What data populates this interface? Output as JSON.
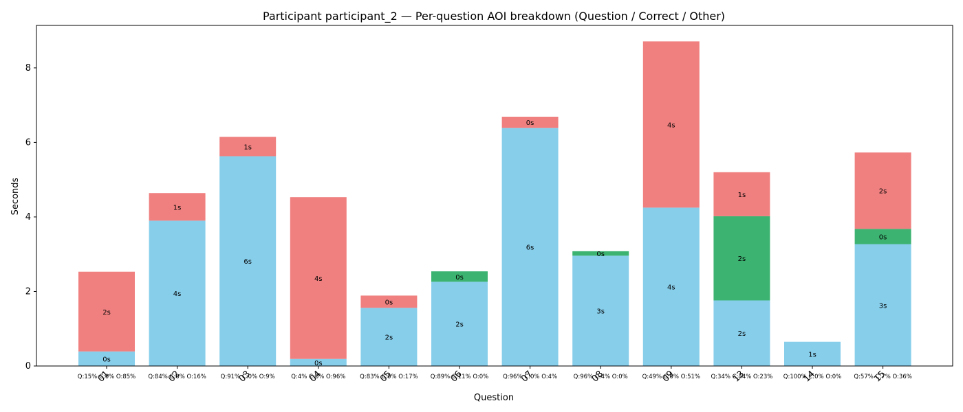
{
  "chart_data": {
    "type": "bar",
    "stacked": true,
    "title": "Participant participant_2 — Per-question AOI breakdown (Question / Correct / Other)",
    "xlabel": "Question",
    "ylabel": "Seconds",
    "ylim": [
      0,
      9.14
    ],
    "yticks": [
      "0",
      "2",
      "4",
      "6",
      "8"
    ],
    "grid": false,
    "legend": "none",
    "categories": [
      "01",
      "02",
      "03",
      "04",
      "05",
      "06",
      "07",
      "08",
      "09",
      "13",
      "14",
      "15"
    ],
    "percent_labels": [
      "Q:15% C:0% O:85%",
      "Q:84% C:0% O:16%",
      "Q:91% C:0% O:9%",
      "Q:4% C:0% O:96%",
      "Q:83% C:0% O:17%",
      "Q:89% C:11% O:0%",
      "Q:96% C:0% O:4%",
      "Q:96% C:4% O:0%",
      "Q:49% C:0% O:51%",
      "Q:34% C:44% O:23%",
      "Q:100% C:0% O:0%",
      "Q:57% C:7% O:36%"
    ],
    "series": [
      {
        "color": "#87CEEB",
        "values": [
          0.39,
          3.9,
          5.63,
          0.19,
          1.56,
          2.26,
          6.39,
          2.96,
          4.25,
          1.76,
          0.65,
          3.27
        ],
        "labels": [
          "0s",
          "4s",
          "6s",
          "0s",
          "2s",
          "2s",
          "6s",
          "3s",
          "4s",
          "2s",
          "1s",
          "3s"
        ]
      },
      {
        "color": "#3CB371",
        "values": [
          0,
          0,
          0,
          0,
          0,
          0.28,
          0,
          0.12,
          0,
          2.26,
          0,
          0.41
        ],
        "labels": [
          "",
          "",
          "",
          "",
          "",
          "0s",
          "",
          "0s",
          "",
          "2s",
          "",
          "0s"
        ]
      },
      {
        "color": "#F08080",
        "values": [
          2.14,
          0.74,
          0.52,
          4.34,
          0.33,
          0,
          0.3,
          0,
          4.46,
          1.18,
          0,
          2.05
        ],
        "labels": [
          "2s",
          "1s",
          "1s",
          "4s",
          "0s",
          "",
          "0s",
          "",
          "4s",
          "1s",
          "",
          "2s"
        ]
      }
    ]
  }
}
